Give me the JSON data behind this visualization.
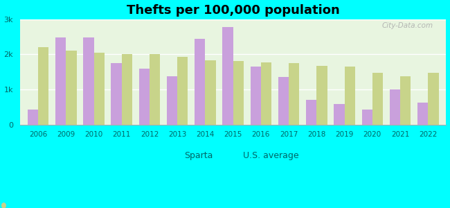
{
  "title": "Thefts per 100,000 population",
  "years": [
    2006,
    2009,
    2010,
    2011,
    2012,
    2013,
    2014,
    2015,
    2016,
    2017,
    2018,
    2019,
    2020,
    2021,
    2022
  ],
  "sparta": [
    420,
    2480,
    2480,
    1750,
    1600,
    1380,
    2450,
    2780,
    1650,
    1350,
    700,
    580,
    420,
    1000,
    620
  ],
  "us_avg": [
    2200,
    2100,
    2050,
    2000,
    2000,
    1930,
    1840,
    1820,
    1780,
    1760,
    1680,
    1660,
    1470,
    1380,
    1480
  ],
  "sparta_color": "#c9a0dc",
  "us_avg_color": "#c8d48a",
  "figure_bg": "#00ffff",
  "plot_bg": "#e8f5e0",
  "ylim": [
    0,
    3000
  ],
  "yticks": [
    0,
    1000,
    2000,
    3000
  ],
  "ytick_labels": [
    "0",
    "1k",
    "2k",
    "3k"
  ],
  "bar_width": 0.38,
  "legend_sparta": "Sparta",
  "legend_us": "U.S. average",
  "title_fontsize": 13,
  "watermark": "City-Data.com",
  "tick_color": "#006666",
  "spine_color": "#aaaaaa"
}
